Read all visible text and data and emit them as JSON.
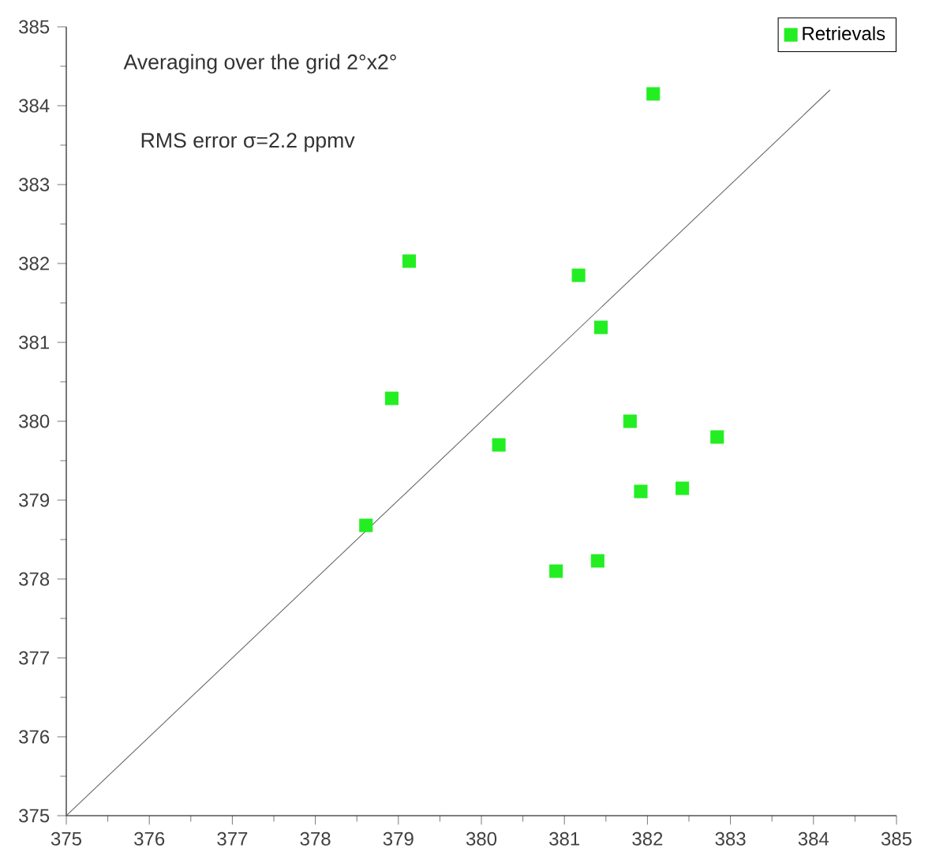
{
  "chart_data": {
    "type": "scatter",
    "annotations": [
      "Averaging over the grid 2°x2°",
      "RMS error σ=2.2 ppmv"
    ],
    "series": [
      {
        "name": "Retrievals",
        "color": "#22ee22",
        "marker": "square",
        "x": [
          378.61,
          378.92,
          379.13,
          380.21,
          380.9,
          381.17,
          381.4,
          381.44,
          381.79,
          381.92,
          382.07,
          382.42,
          382.84
        ],
        "values": [
          378.68,
          380.29,
          382.03,
          379.7,
          378.1,
          381.85,
          378.23,
          381.19,
          380.0,
          379.11,
          384.15,
          379.15,
          379.8
        ]
      },
      {
        "type": "line",
        "color": "#666666",
        "marker": "none",
        "x": [
          375,
          384.2
        ],
        "values": [
          375,
          384.2
        ]
      }
    ],
    "xlim": [
      375,
      385
    ],
    "ylim": [
      375,
      385
    ],
    "xticks": [
      375,
      376,
      377,
      378,
      379,
      380,
      381,
      382,
      383,
      384,
      385
    ],
    "yticks": [
      375,
      376,
      377,
      378,
      379,
      380,
      381,
      382,
      383,
      384,
      385
    ],
    "grid": false,
    "legend": "top right"
  }
}
